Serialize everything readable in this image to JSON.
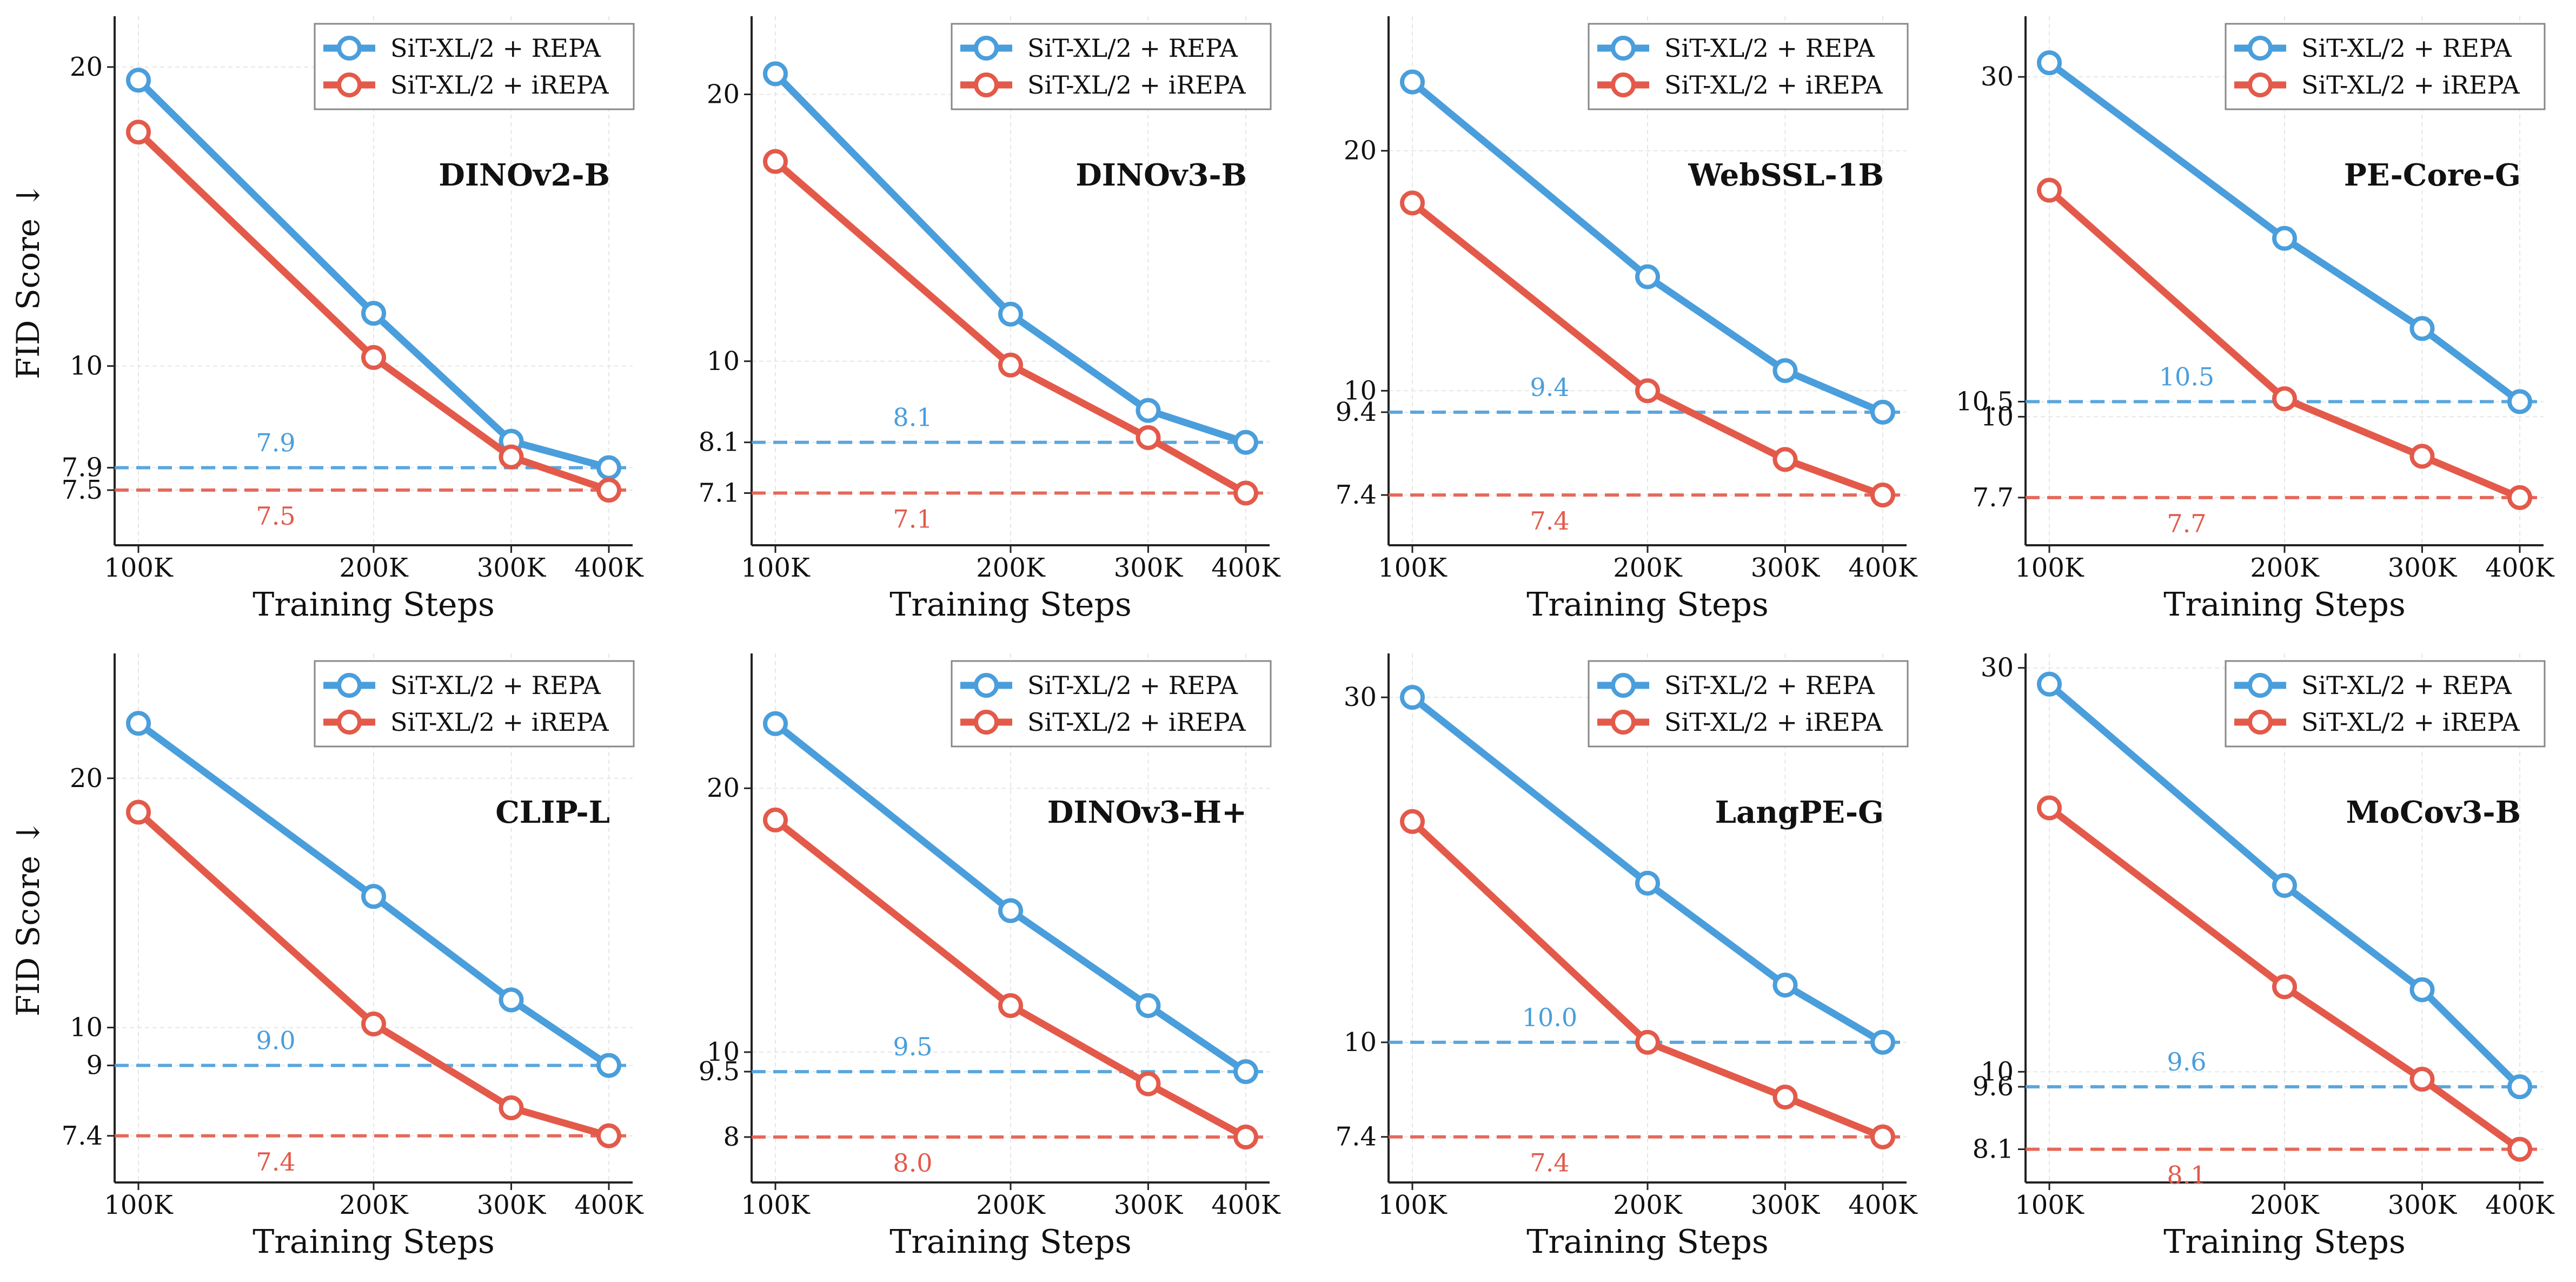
{
  "figure": {
    "ylabel": "FID Score ↓",
    "xlabel": "Training Steps"
  },
  "colors": {
    "repa": "#4A9EDB",
    "irepa": "#E35A4A",
    "grid": "#E6E6E6",
    "axis": "#222222"
  },
  "chart_data": [
    {
      "type": "line",
      "title": "DINOv2-B",
      "xlabel": "Training Steps",
      "ylabel": "FID Score ↓",
      "x": [
        100000,
        200000,
        300000,
        400000
      ],
      "xticks": [
        "100K",
        "200K",
        "300K",
        "400K"
      ],
      "xscale": "log",
      "yscale": "log",
      "ylim": [
        6.6,
        22.5
      ],
      "yticks": [
        7.5,
        7.9,
        10,
        20
      ],
      "series": [
        {
          "name": "SiT-XL/2 + REPA",
          "values": [
            19.4,
            11.3,
            8.4,
            7.9
          ]
        },
        {
          "name": "SiT-XL/2 + iREPA",
          "values": [
            17.2,
            10.2,
            8.1,
            7.5
          ]
        }
      ],
      "hlines": [
        {
          "series": "SiT-XL/2 + REPA",
          "value": 7.9,
          "label": "7.9"
        },
        {
          "series": "SiT-XL/2 + iREPA",
          "value": 7.5,
          "label": "7.5"
        }
      ],
      "legend": "top-right",
      "grid": true
    },
    {
      "type": "line",
      "title": "DINOv3-B",
      "xlabel": "Training Steps",
      "ylabel": "",
      "x": [
        100000,
        200000,
        300000,
        400000
      ],
      "xticks": [
        "100K",
        "200K",
        "300K",
        "400K"
      ],
      "xscale": "log",
      "yscale": "log",
      "ylim": [
        6.2,
        24.5
      ],
      "yticks": [
        7.1,
        8.1,
        10,
        20
      ],
      "series": [
        {
          "name": "SiT-XL/2 + REPA",
          "values": [
            21.1,
            11.3,
            8.8,
            8.1
          ]
        },
        {
          "name": "SiT-XL/2 + iREPA",
          "values": [
            16.8,
            9.9,
            8.2,
            7.1
          ]
        }
      ],
      "hlines": [
        {
          "series": "SiT-XL/2 + REPA",
          "value": 8.1,
          "label": "8.1"
        },
        {
          "series": "SiT-XL/2 + iREPA",
          "value": 7.1,
          "label": "7.1"
        }
      ],
      "legend": "top-right",
      "grid": true
    },
    {
      "type": "line",
      "title": "WebSSL-1B",
      "xlabel": "Training Steps",
      "ylabel": "",
      "x": [
        100000,
        200000,
        300000,
        400000
      ],
      "xticks": [
        "100K",
        "200K",
        "300K",
        "400K"
      ],
      "xscale": "log",
      "yscale": "log",
      "ylim": [
        6.4,
        29.5
      ],
      "yticks": [
        7.4,
        9.4,
        10,
        20
      ],
      "series": [
        {
          "name": "SiT-XL/2 + REPA",
          "values": [
            24.4,
            13.9,
            10.6,
            9.4
          ]
        },
        {
          "name": "SiT-XL/2 + iREPA",
          "values": [
            17.2,
            10.0,
            8.2,
            7.4
          ]
        }
      ],
      "hlines": [
        {
          "series": "SiT-XL/2 + REPA",
          "value": 9.4,
          "label": "9.4"
        },
        {
          "series": "SiT-XL/2 + iREPA",
          "value": 7.4,
          "label": "7.4"
        }
      ],
      "legend": "top-right",
      "grid": true
    },
    {
      "type": "line",
      "title": "PE-Core-G",
      "xlabel": "Training Steps",
      "ylabel": "",
      "x": [
        100000,
        200000,
        300000,
        400000
      ],
      "xticks": [
        "100K",
        "200K",
        "300K",
        "400K"
      ],
      "xscale": "log",
      "yscale": "log",
      "ylim": [
        6.6,
        36.5
      ],
      "yticks": [
        7.7,
        10,
        10.5,
        30
      ],
      "series": [
        {
          "name": "SiT-XL/2 + REPA",
          "values": [
            31.4,
            17.8,
            13.3,
            10.5
          ]
        },
        {
          "name": "SiT-XL/2 + iREPA",
          "values": [
            20.8,
            10.6,
            8.8,
            7.7
          ]
        }
      ],
      "hlines": [
        {
          "series": "SiT-XL/2 + REPA",
          "value": 10.5,
          "label": "10.5"
        },
        {
          "series": "SiT-XL/2 + iREPA",
          "value": 7.7,
          "label": "7.7"
        }
      ],
      "legend": "top-right",
      "grid": true
    },
    {
      "type": "line",
      "title": "CLIP-L",
      "xlabel": "Training Steps",
      "ylabel": "FID Score ↓",
      "x": [
        100000,
        200000,
        300000,
        400000
      ],
      "xticks": [
        "100K",
        "200K",
        "300K",
        "400K"
      ],
      "xscale": "log",
      "yscale": "log",
      "ylim": [
        6.5,
        28.3
      ],
      "yticks": [
        7.4,
        9.0,
        10,
        20
      ],
      "series": [
        {
          "name": "SiT-XL/2 + REPA",
          "values": [
            23.3,
            14.4,
            10.8,
            9.0
          ]
        },
        {
          "name": "SiT-XL/2 + iREPA",
          "values": [
            18.2,
            10.1,
            8.0,
            7.4
          ]
        }
      ],
      "hlines": [
        {
          "series": "SiT-XL/2 + REPA",
          "value": 9.0,
          "label": "9.0"
        },
        {
          "series": "SiT-XL/2 + iREPA",
          "value": 7.4,
          "label": "7.4"
        }
      ],
      "legend": "top-right",
      "grid": true
    },
    {
      "type": "line",
      "title": "DINOv3-H+",
      "xlabel": "Training Steps",
      "ylabel": "",
      "x": [
        100000,
        200000,
        300000,
        400000
      ],
      "xticks": [
        "100K",
        "200K",
        "300K",
        "400K"
      ],
      "xscale": "log",
      "yscale": "log",
      "ylim": [
        7.1,
        28.5
      ],
      "yticks": [
        8.0,
        9.5,
        10,
        20
      ],
      "series": [
        {
          "name": "SiT-XL/2 + REPA",
          "values": [
            23.7,
            14.5,
            11.3,
            9.5
          ]
        },
        {
          "name": "SiT-XL/2 + iREPA",
          "values": [
            18.4,
            11.3,
            9.2,
            8.0
          ]
        }
      ],
      "hlines": [
        {
          "series": "SiT-XL/2 + REPA",
          "value": 9.5,
          "label": "9.5"
        },
        {
          "series": "SiT-XL/2 + iREPA",
          "value": 8.0,
          "label": "8.0"
        }
      ],
      "legend": "top-right",
      "grid": true
    },
    {
      "type": "line",
      "title": "LangPE-G",
      "xlabel": "Training Steps",
      "ylabel": "",
      "x": [
        100000,
        200000,
        300000,
        400000
      ],
      "xticks": [
        "100K",
        "200K",
        "300K",
        "400K"
      ],
      "xscale": "log",
      "yscale": "log",
      "ylim": [
        6.4,
        34.5
      ],
      "yticks": [
        7.4,
        10.0,
        30
      ],
      "series": [
        {
          "name": "SiT-XL/2 + REPA",
          "values": [
            30.0,
            16.6,
            12.0,
            10.0
          ]
        },
        {
          "name": "SiT-XL/2 + iREPA",
          "values": [
            20.2,
            10.0,
            8.4,
            7.4
          ]
        }
      ],
      "hlines": [
        {
          "series": "SiT-XL/2 + REPA",
          "value": 10.0,
          "label": "10.0"
        },
        {
          "series": "SiT-XL/2 + iREPA",
          "value": 7.4,
          "label": "7.4"
        }
      ],
      "legend": "top-right",
      "grid": true
    },
    {
      "type": "line",
      "title": "MoCov3-B",
      "xlabel": "Training Steps",
      "ylabel": "",
      "x": [
        100000,
        200000,
        300000,
        400000
      ],
      "xticks": [
        "100K",
        "200K",
        "300K",
        "400K"
      ],
      "xscale": "log",
      "yscale": "log",
      "ylim": [
        7.4,
        31.2
      ],
      "yticks": [
        8.1,
        9.6,
        10,
        30
      ],
      "series": [
        {
          "name": "SiT-XL/2 + REPA",
          "values": [
            28.7,
            16.6,
            12.5,
            9.6
          ]
        },
        {
          "name": "SiT-XL/2 + iREPA",
          "values": [
            20.5,
            12.6,
            9.8,
            8.1
          ]
        }
      ],
      "hlines": [
        {
          "series": "SiT-XL/2 + REPA",
          "value": 9.6,
          "label": "9.6"
        },
        {
          "series": "SiT-XL/2 + iREPA",
          "value": 8.1,
          "label": "8.1"
        }
      ],
      "legend": "top-right",
      "grid": true
    }
  ]
}
